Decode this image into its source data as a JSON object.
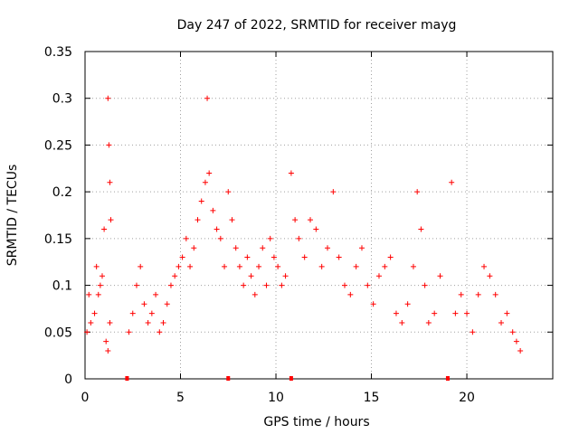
{
  "chart_data": {
    "type": "scatter",
    "title": "Day 247 of 2022, SRMTID for receiver mayg",
    "xlabel": "GPS time / hours",
    "ylabel": "SRMTID / TECUs",
    "xlim": [
      0,
      24.5
    ],
    "ylim": [
      0,
      0.35
    ],
    "xticks": [
      0,
      5,
      10,
      15,
      20
    ],
    "xtick_labels": [
      "0",
      "5",
      "10",
      "15",
      "20"
    ],
    "yticks": [
      0,
      0.05,
      0.1,
      0.15,
      0.2,
      0.25,
      0.3,
      0.35
    ],
    "ytick_labels": [
      "0",
      "0.05",
      "0.1",
      "0.15",
      "0.2",
      "0.25",
      "0.3",
      "0.35"
    ],
    "grid": true,
    "marker": "plus",
    "color": "#ff0000",
    "series": [
      {
        "name": "SRMTID",
        "points": [
          [
            0.1,
            0.05
          ],
          [
            0.3,
            0.06
          ],
          [
            0.5,
            0.07
          ],
          [
            0.7,
            0.09
          ],
          [
            0.9,
            0.11
          ],
          [
            1.1,
            0.04
          ],
          [
            1.2,
            0.03
          ],
          [
            1.3,
            0.06
          ],
          [
            0.2,
            0.09
          ],
          [
            0.6,
            0.12
          ],
          [
            1.0,
            0.16
          ],
          [
            1.2,
            0.3
          ],
          [
            1.25,
            0.25
          ],
          [
            1.3,
            0.21
          ],
          [
            1.35,
            0.17
          ],
          [
            0.8,
            0.1
          ],
          [
            2.3,
            0.05
          ],
          [
            2.5,
            0.07
          ],
          [
            2.7,
            0.1
          ],
          [
            2.9,
            0.12
          ],
          [
            3.1,
            0.08
          ],
          [
            3.3,
            0.06
          ],
          [
            3.5,
            0.07
          ],
          [
            3.7,
            0.09
          ],
          [
            3.9,
            0.05
          ],
          [
            4.1,
            0.06
          ],
          [
            4.3,
            0.08
          ],
          [
            4.5,
            0.1
          ],
          [
            4.7,
            0.11
          ],
          [
            4.9,
            0.12
          ],
          [
            5.1,
            0.13
          ],
          [
            5.3,
            0.15
          ],
          [
            5.5,
            0.12
          ],
          [
            5.7,
            0.14
          ],
          [
            5.9,
            0.17
          ],
          [
            6.1,
            0.19
          ],
          [
            6.3,
            0.21
          ],
          [
            6.4,
            0.3
          ],
          [
            6.5,
            0.22
          ],
          [
            6.7,
            0.18
          ],
          [
            6.9,
            0.16
          ],
          [
            7.1,
            0.15
          ],
          [
            7.3,
            0.12
          ],
          [
            7.5,
            0.2
          ],
          [
            7.7,
            0.17
          ],
          [
            7.9,
            0.14
          ],
          [
            8.1,
            0.12
          ],
          [
            8.3,
            0.1
          ],
          [
            8.5,
            0.13
          ],
          [
            8.7,
            0.11
          ],
          [
            8.9,
            0.09
          ],
          [
            9.1,
            0.12
          ],
          [
            9.3,
            0.14
          ],
          [
            9.5,
            0.1
          ],
          [
            9.7,
            0.15
          ],
          [
            9.9,
            0.13
          ],
          [
            10.1,
            0.12
          ],
          [
            10.3,
            0.1
          ],
          [
            10.5,
            0.11
          ],
          [
            10.8,
            0.22
          ],
          [
            11.0,
            0.17
          ],
          [
            11.2,
            0.15
          ],
          [
            11.5,
            0.13
          ],
          [
            11.8,
            0.17
          ],
          [
            12.1,
            0.16
          ],
          [
            12.4,
            0.12
          ],
          [
            12.7,
            0.14
          ],
          [
            13.0,
            0.2
          ],
          [
            13.3,
            0.13
          ],
          [
            13.6,
            0.1
          ],
          [
            13.9,
            0.09
          ],
          [
            14.2,
            0.12
          ],
          [
            14.5,
            0.14
          ],
          [
            14.8,
            0.1
          ],
          [
            15.1,
            0.08
          ],
          [
            15.4,
            0.11
          ],
          [
            15.7,
            0.12
          ],
          [
            16.0,
            0.13
          ],
          [
            16.3,
            0.07
          ],
          [
            16.6,
            0.06
          ],
          [
            16.9,
            0.08
          ],
          [
            17.2,
            0.12
          ],
          [
            17.4,
            0.2
          ],
          [
            17.6,
            0.16
          ],
          [
            17.8,
            0.1
          ],
          [
            18.0,
            0.06
          ],
          [
            18.3,
            0.07
          ],
          [
            18.6,
            0.11
          ],
          [
            19.2,
            0.21
          ],
          [
            19.4,
            0.07
          ],
          [
            19.7,
            0.09
          ],
          [
            20.0,
            0.07
          ],
          [
            20.3,
            0.05
          ],
          [
            20.6,
            0.09
          ],
          [
            20.9,
            0.12
          ],
          [
            21.2,
            0.11
          ],
          [
            21.5,
            0.09
          ],
          [
            21.8,
            0.06
          ],
          [
            22.1,
            0.07
          ],
          [
            22.4,
            0.05
          ],
          [
            22.6,
            0.04
          ],
          [
            22.8,
            0.03
          ]
        ]
      }
    ],
    "gap_markers_x": [
      2.2,
      7.5,
      10.8,
      19.0
    ]
  }
}
